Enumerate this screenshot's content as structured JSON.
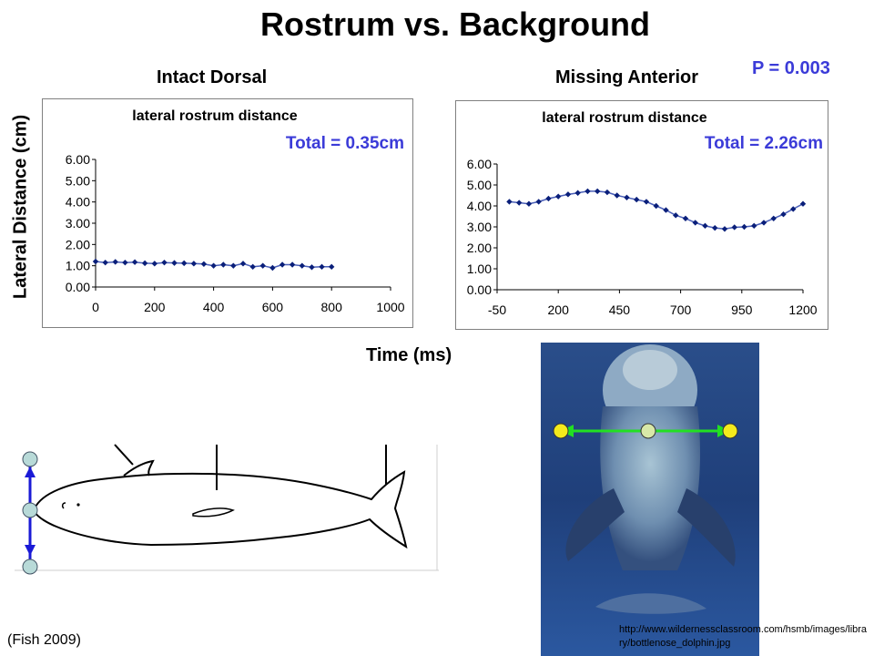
{
  "slide": {
    "title": "Rostrum vs. Background",
    "left_heading": "Intact Dorsal",
    "right_heading": "Missing Anterior",
    "p_value": "P = 0.003",
    "y_axis_title": "Lateral Distance (cm)",
    "x_axis_title": "Time (ms)",
    "citation": "(Fish 2009)",
    "photo_url": "http://www.wildernessclassroom.com/hsmb/images/library/bottlenose_dolphin.jpg"
  },
  "colors": {
    "marker": "#0a1f7a",
    "line": "#4a5fb8",
    "total_label": "#3b3bd8",
    "arrow_blue": "#1a1ad6",
    "arrow_green": "#22e022",
    "dot_yellow": "#f4ea1c",
    "dot_teal": "#b8dad8"
  },
  "icons": {
    "left_illustration": "dolphin-outline-icon",
    "right_photo": "dolphin-photo-icon"
  },
  "chart_data": [
    {
      "type": "line",
      "title": "lateral rostrum distance",
      "total_label": "Total = 0.35cm",
      "xlim": [
        0,
        1000
      ],
      "ylim": [
        0,
        6
      ],
      "x_ticks": [
        0,
        200,
        400,
        600,
        800,
        1000
      ],
      "y_ticks": [
        0,
        1,
        2,
        3,
        4,
        5,
        6
      ],
      "y_tick_labels": [
        "0.00",
        "1.00",
        "2.00",
        "3.00",
        "4.00",
        "5.00",
        "6.00"
      ],
      "x": [
        0,
        33,
        67,
        100,
        133,
        167,
        200,
        233,
        267,
        300,
        333,
        367,
        400,
        433,
        467,
        500,
        533,
        567,
        600,
        633,
        667,
        700,
        733,
        767,
        800
      ],
      "y": [
        1.2,
        1.15,
        1.18,
        1.15,
        1.17,
        1.12,
        1.1,
        1.15,
        1.13,
        1.12,
        1.1,
        1.08,
        1.0,
        1.05,
        1.0,
        1.1,
        0.95,
        1.0,
        0.9,
        1.05,
        1.05,
        1.0,
        0.93,
        0.95,
        0.95
      ],
      "grid": false
    },
    {
      "type": "line",
      "title": "lateral rostrum distance",
      "total_label": "Total = 2.26cm",
      "xlim": [
        -50,
        1200
      ],
      "ylim": [
        0,
        6
      ],
      "x_ticks": [
        -50,
        200,
        450,
        700,
        950,
        1200
      ],
      "y_ticks": [
        0,
        1,
        2,
        3,
        4,
        5,
        6
      ],
      "y_tick_labels": [
        "0.00",
        "1.00",
        "2.00",
        "3.00",
        "4.00",
        "5.00",
        "6.00"
      ],
      "x": [
        0,
        40,
        80,
        120,
        160,
        200,
        240,
        280,
        320,
        360,
        400,
        440,
        480,
        520,
        560,
        600,
        640,
        680,
        720,
        760,
        800,
        840,
        880,
        920,
        960,
        1000,
        1040,
        1080,
        1120,
        1160,
        1200
      ],
      "y": [
        4.2,
        4.15,
        4.1,
        4.2,
        4.35,
        4.45,
        4.55,
        4.62,
        4.7,
        4.7,
        4.65,
        4.5,
        4.4,
        4.3,
        4.2,
        4.0,
        3.8,
        3.55,
        3.4,
        3.2,
        3.05,
        2.95,
        2.9,
        2.98,
        3.0,
        3.05,
        3.2,
        3.4,
        3.6,
        3.85,
        4.1
      ],
      "grid": false
    }
  ]
}
